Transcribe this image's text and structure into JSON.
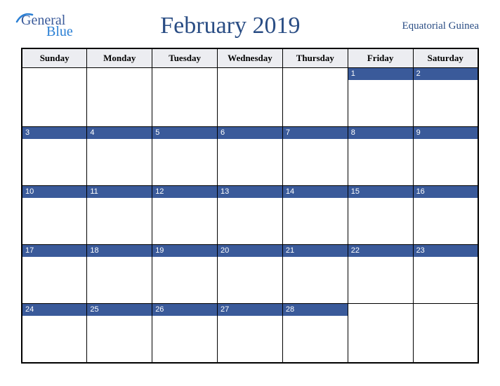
{
  "logo": {
    "top_text": "General",
    "bottom_text": "Blue",
    "top_color": "#3a5a9a",
    "bottom_color": "#2a7fd4"
  },
  "title": "February 2019",
  "region": "Equatorial Guinea",
  "colors": {
    "header_bg": "#ecedf1",
    "bar_bg": "#3a5a9a",
    "bar_text": "#ffffff",
    "border": "#000000",
    "title_color": "#2a4d84"
  },
  "day_headers": [
    "Sunday",
    "Monday",
    "Tuesday",
    "Wednesday",
    "Thursday",
    "Friday",
    "Saturday"
  ],
  "weeks": [
    [
      "",
      "",
      "",
      "",
      "",
      "1",
      "2"
    ],
    [
      "3",
      "4",
      "5",
      "6",
      "7",
      "8",
      "9"
    ],
    [
      "10",
      "11",
      "12",
      "13",
      "14",
      "15",
      "16"
    ],
    [
      "17",
      "18",
      "19",
      "20",
      "21",
      "22",
      "23"
    ],
    [
      "24",
      "25",
      "26",
      "27",
      "28",
      "",
      ""
    ]
  ]
}
